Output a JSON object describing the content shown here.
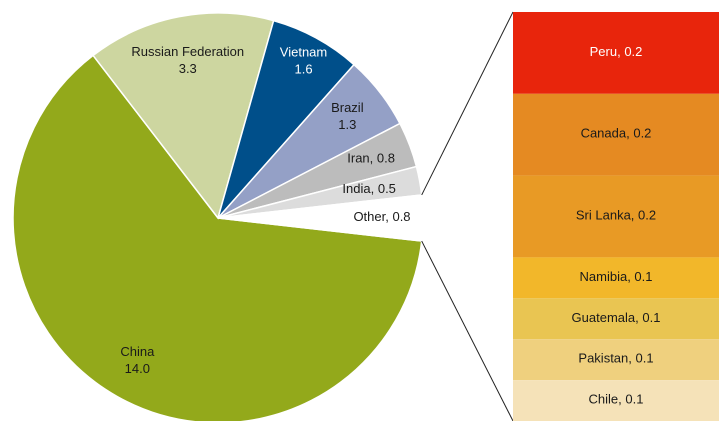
{
  "chart_data": [
    {
      "type": "pie",
      "categories": [
        "China",
        "Russian Federation",
        "Vietnam",
        "Brazil",
        "Iran",
        "India",
        "Other"
      ],
      "values": [
        14.0,
        3.3,
        1.6,
        1.3,
        0.8,
        0.5,
        0.8
      ],
      "value_labels": [
        "14.0",
        "3.3",
        "1.6",
        "1.3",
        "0.8",
        "0.5",
        "0.8"
      ],
      "colors": [
        "#93a91b",
        "#cdd6a0",
        "#004f8a",
        "#94a0c6",
        "#bcbcbc",
        "#dcdcdc",
        "#ffffff"
      ],
      "label_separator": ", "
    },
    {
      "type": "stacked_bar",
      "categories": [
        "Peru",
        "Canada",
        "Sri Lanka",
        "Namibia",
        "Guatemala",
        "Pakistan",
        "Chile"
      ],
      "values": [
        0.2,
        0.2,
        0.2,
        0.1,
        0.1,
        0.1,
        0.1
      ],
      "colors": [
        "#e8250c",
        "#e58a22",
        "#e89a25",
        "#f2b72a",
        "#e9c552",
        "#efd07e",
        "#f5e2b8"
      ],
      "label_separator": ", "
    }
  ]
}
